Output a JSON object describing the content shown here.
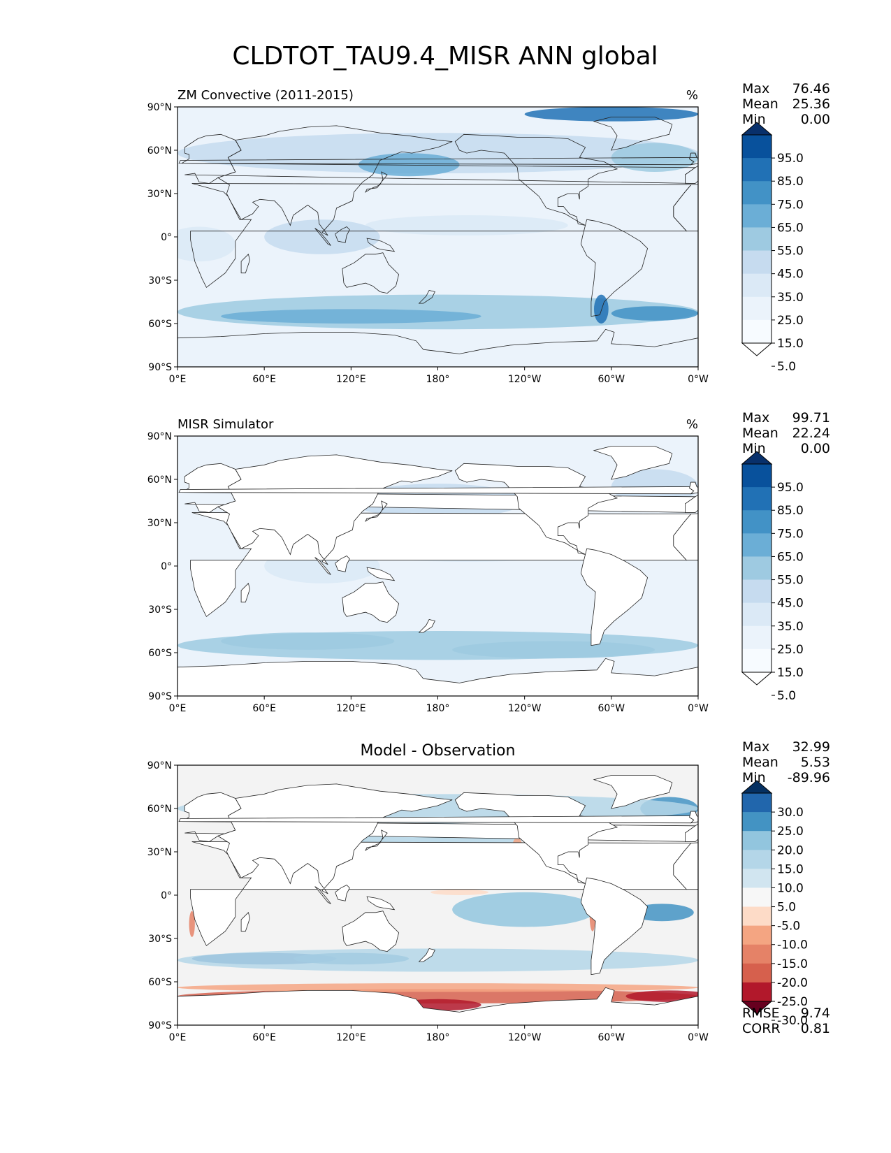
{
  "figure": {
    "title": "CLDTOT_TAU9.4_MISR ANN global"
  },
  "axes": {
    "lat_ticks": [
      "90°N",
      "60°N",
      "30°N",
      "0°",
      "30°S",
      "60°S",
      "90°S"
    ],
    "lon_ticks": [
      "0°E",
      "60°E",
      "120°E",
      "180°",
      "120°W",
      "60°W",
      "0°W"
    ]
  },
  "panels": [
    {
      "title": "ZM Convective (2011-2015)",
      "title_align": "left",
      "units": "%",
      "stats": [
        {
          "label": "Max",
          "value": "76.46"
        },
        {
          "label": "Mean",
          "value": "25.36"
        },
        {
          "label": "Min",
          "value": "0.00"
        }
      ],
      "extra_stats": [],
      "colorbar": {
        "labels": [
          "95.0",
          "85.0",
          "75.0",
          "65.0",
          "55.0",
          "45.0",
          "35.0",
          "25.0",
          "15.0",
          "5.0"
        ],
        "colors": [
          "#08306b",
          "#08519c",
          "#2171b5",
          "#4292c6",
          "#6baed6",
          "#9ecae1",
          "#c6dbef",
          "#dbe9f6",
          "#ebf3fb",
          "#f7fbff",
          "#ffffff"
        ]
      }
    },
    {
      "title": "MISR Simulator",
      "title_align": "left",
      "units": "%",
      "stats": [
        {
          "label": "Max",
          "value": "99.71"
        },
        {
          "label": "Mean",
          "value": "22.24"
        },
        {
          "label": "Min",
          "value": "0.00"
        }
      ],
      "extra_stats": [],
      "colorbar": {
        "labels": [
          "95.0",
          "85.0",
          "75.0",
          "65.0",
          "55.0",
          "45.0",
          "35.0",
          "25.0",
          "15.0",
          "5.0"
        ],
        "colors": [
          "#08306b",
          "#08519c",
          "#2171b5",
          "#4292c6",
          "#6baed6",
          "#9ecae1",
          "#c6dbef",
          "#dbe9f6",
          "#ebf3fb",
          "#f7fbff",
          "#ffffff"
        ]
      }
    },
    {
      "title": "Model - Observation",
      "title_align": "center",
      "units": "",
      "stats": [
        {
          "label": "Max",
          "value": "32.99"
        },
        {
          "label": "Mean",
          "value": "5.53"
        },
        {
          "label": "Min",
          "value": "-89.96"
        }
      ],
      "extra_stats": [
        {
          "label": "RMSE",
          "value": "9.74"
        },
        {
          "label": "CORR",
          "value": "0.81"
        }
      ],
      "colorbar": {
        "labels": [
          "30.0",
          "25.0",
          "20.0",
          "15.0",
          "10.0",
          "5.0",
          "-5.0",
          "-10.0",
          "-15.0",
          "-20.0",
          "-25.0",
          "-30.0"
        ],
        "colors": [
          "#053061",
          "#2166ac",
          "#4393c3",
          "#92c5de",
          "#b4d6e8",
          "#d1e5f0",
          "#f7f7f7",
          "#fddbc7",
          "#f4a582",
          "#e58267",
          "#d6604d",
          "#b2182b",
          "#67001f"
        ]
      }
    }
  ]
}
